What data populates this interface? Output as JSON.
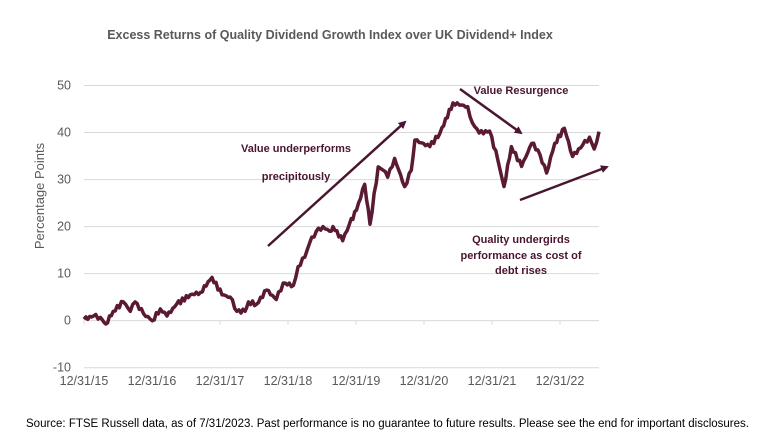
{
  "chart_data": {
    "type": "line",
    "title": "Excess Returns of Quality Dividend Growth Index over UK  Dividend+ Index",
    "xlabel": "",
    "ylabel": "Percentage Points",
    "ylim": [
      -10,
      50
    ],
    "yticks": [
      "50",
      "40",
      "30",
      "20",
      "10",
      "0",
      "-10"
    ],
    "xticks": [
      "12/31/15",
      "12/31/16",
      "12/31/17",
      "12/31/18",
      "12/31/19",
      "12/31/20",
      "12/31/21",
      "12/31/22"
    ],
    "xlim": [
      "2015-12-31",
      "2023-07-31"
    ],
    "grid": true,
    "line_color": "#5b1a33",
    "series": [
      {
        "x": [
          "2015-12-31",
          "2016-02-20",
          "2016-03-28",
          "2016-04-26",
          "2016-06-05",
          "2016-07-30",
          "2016-09-05",
          "2016-10-01",
          "2016-11-15",
          "2017-01-01",
          "2017-02-13",
          "2017-03-21",
          "2017-05-12",
          "2017-07-24",
          "2017-09-17",
          "2017-11-18",
          "2018-01-11",
          "2018-02-24",
          "2018-04-01",
          "2018-05-15",
          "2018-06-02",
          "2018-07-16",
          "2018-09-08",
          "2018-10-30",
          "2018-12-06",
          "2019-01-30",
          "2019-02-24",
          "2019-04-01",
          "2019-04-27",
          "2019-06-02",
          "2019-07-08",
          "2019-08-13",
          "2019-08-31",
          "2019-10-22",
          "2019-11-27",
          "2020-01-04",
          "2020-02-17",
          "2020-03-17",
          "2020-04-30",
          "2020-05-26",
          "2020-06-20",
          "2020-07-27",
          "2020-09-19",
          "2020-10-25",
          "2020-11-13",
          "2021-02-01",
          "2021-03-28",
          "2021-06-06",
          "2021-08-24",
          "2021-09-19",
          "2021-10-25",
          "2021-12-20",
          "2022-02-02",
          "2022-03-07",
          "2022-04-16",
          "2022-06-10",
          "2022-08-03",
          "2022-09-05",
          "2022-10-22",
          "2022-12-05",
          "2023-01-26",
          "2023-03-11",
          "2023-05-04",
          "2023-06-10",
          "2023-07-05",
          "2023-07-31"
        ],
        "y": [
          0.3,
          1,
          0.7,
          -0.7,
          2,
          4,
          2,
          4,
          1.5,
          0,
          2.5,
          1,
          3.5,
          5.5,
          6,
          9.2,
          5.5,
          5,
          2,
          2,
          4,
          3.5,
          6.5,
          4.5,
          8,
          7.5,
          11.5,
          13.5,
          16.5,
          19,
          20,
          19,
          20,
          17,
          20.5,
          23.5,
          29,
          20.5,
          32.7,
          32,
          30.5,
          34.5,
          28.5,
          32,
          38.4,
          37,
          39.9,
          46.3,
          45.5,
          42,
          39.9,
          40.3,
          34.2,
          28.5,
          37,
          32.8,
          37.7,
          36.3,
          31.4,
          37.7,
          40.9,
          34.9,
          37.3,
          39,
          36.5,
          40.2
        ]
      }
    ],
    "annotations": {
      "underperform_line1": "Value underperforms",
      "underperform_line2": "precipitously",
      "resurgence": "Value Resurgence",
      "quality_line1": "Quality undergirds",
      "quality_line2": "performance as cost of",
      "quality_line3": "debt rises"
    }
  },
  "source": "Source: FTSE Russell data, as of 7/31/2023. Past performance is no guarantee to future results. Please see the end for important disclosures."
}
